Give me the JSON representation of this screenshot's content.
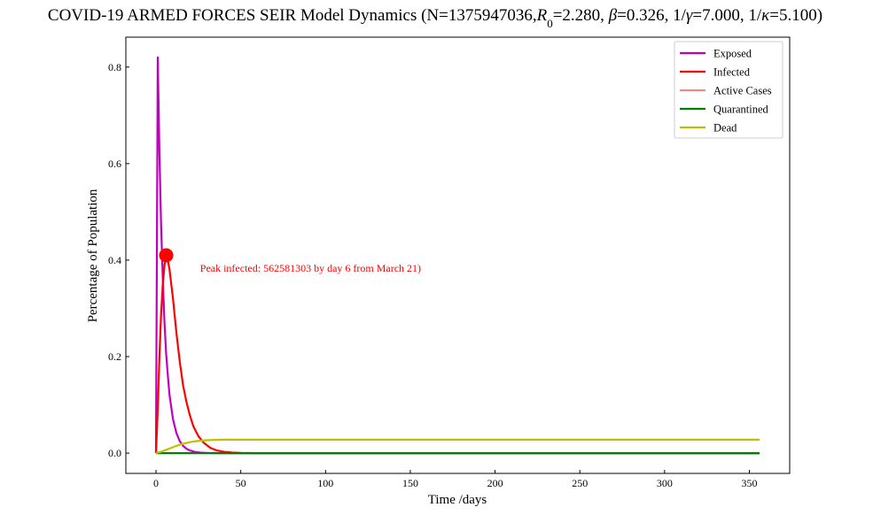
{
  "chart_data": {
    "type": "line",
    "title_parts": [
      {
        "text": "COVID-19 ARMED FORCES SEIR Model Dynamics (N=1375947036,",
        "style": "normal"
      },
      {
        "text": "R",
        "style": "italic"
      },
      {
        "text": "0",
        "style": "sub"
      },
      {
        "text": "=2.280, ",
        "style": "normal"
      },
      {
        "text": "β",
        "style": "italic"
      },
      {
        "text": "=0.326, 1/",
        "style": "normal"
      },
      {
        "text": "γ",
        "style": "italic"
      },
      {
        "text": "=7.000, 1/",
        "style": "normal"
      },
      {
        "text": "κ",
        "style": "italic"
      },
      {
        "text": "=5.100)",
        "style": "normal"
      }
    ],
    "xlabel": "Time /days",
    "ylabel": "Percentage of Population",
    "xlim": [
      -17.8,
      373.8
    ],
    "ylim": [
      -0.042,
      0.862
    ],
    "xticks": [
      0,
      50,
      100,
      150,
      200,
      250,
      300,
      350
    ],
    "yticks": [
      0.0,
      0.2,
      0.4,
      0.6,
      0.8
    ],
    "ytick_labels": [
      "0.0",
      "0.2",
      "0.4",
      "0.6",
      "0.8"
    ],
    "grid": false,
    "legend_position": "top-right",
    "series": [
      {
        "name": "Exposed",
        "color": "#bf00bf",
        "width": 2.2,
        "x": [
          0,
          1,
          2,
          3,
          4,
          5,
          6,
          7,
          8,
          10,
          12,
          14,
          16,
          18,
          20,
          23,
          26,
          30,
          35,
          40,
          50,
          356
        ],
        "y": [
          0.0,
          0.82,
          0.62,
          0.47,
          0.36,
          0.27,
          0.205,
          0.16,
          0.12,
          0.07,
          0.042,
          0.025,
          0.015,
          0.009,
          0.0055,
          0.0025,
          0.0011,
          0.0004,
          0.0001,
          0.0,
          0.0,
          0.0
        ]
      },
      {
        "name": "Infected",
        "color": "#ff0000",
        "width": 2.2,
        "x": [
          0,
          1,
          2,
          3,
          4,
          5,
          6,
          7,
          8,
          10,
          12,
          14,
          16,
          18,
          20,
          22,
          25,
          28,
          32,
          36,
          40,
          45,
          50,
          55,
          60,
          356
        ],
        "y": [
          0.0,
          0.09,
          0.2,
          0.29,
          0.35,
          0.39,
          0.41,
          0.4,
          0.38,
          0.32,
          0.25,
          0.19,
          0.14,
          0.105,
          0.078,
          0.056,
          0.035,
          0.022,
          0.011,
          0.0055,
          0.0027,
          0.001,
          0.0004,
          0.0001,
          0.0,
          0.0
        ]
      },
      {
        "name": "Active Cases",
        "color": "#ff0000",
        "width": 1.0,
        "x": [
          0,
          356
        ],
        "y": [
          0.0,
          0.0
        ]
      },
      {
        "name": "Quarantined",
        "color": "#008000",
        "width": 2.2,
        "x": [
          0,
          356
        ],
        "y": [
          0.0,
          0.0
        ]
      },
      {
        "name": "Dead",
        "color": "#bfbf00",
        "width": 2.2,
        "x": [
          0,
          3,
          6,
          9,
          12,
          15,
          18,
          21,
          24,
          27,
          30,
          35,
          40,
          50,
          356
        ],
        "y": [
          0.0,
          0.003,
          0.007,
          0.011,
          0.015,
          0.0185,
          0.021,
          0.0235,
          0.025,
          0.026,
          0.0268,
          0.0275,
          0.0278,
          0.0279,
          0.0279
        ]
      }
    ],
    "peak_marker": {
      "x": 6,
      "y": 0.41,
      "color": "#ff0000"
    },
    "annotation": {
      "text": "Peak infected: 562581303 by day 6 from March 21)",
      "x": 26,
      "y": 0.383,
      "color": "#ff0000"
    }
  }
}
